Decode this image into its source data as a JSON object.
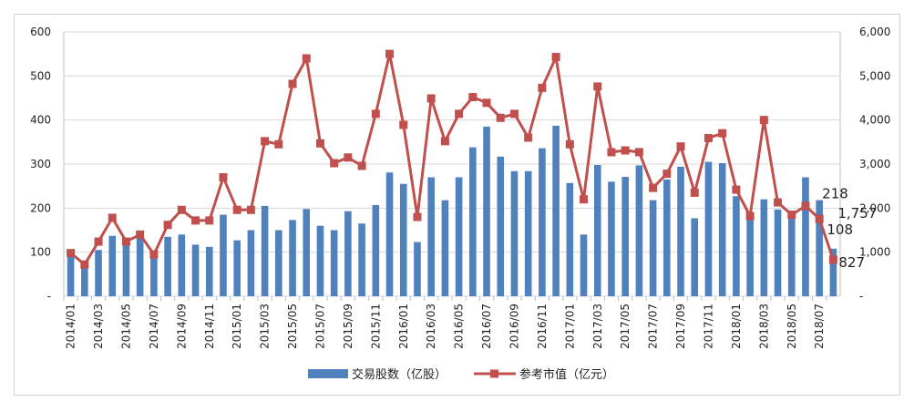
{
  "chart_data": {
    "type": "bar",
    "categories": [
      "2014/01",
      "2014/02",
      "2014/03",
      "2014/04",
      "2014/05",
      "2014/06",
      "2014/07",
      "2014/08",
      "2014/09",
      "2014/10",
      "2014/11",
      "2014/12",
      "2015/01",
      "2015/02",
      "2015/03",
      "2015/04",
      "2015/05",
      "2015/06",
      "2015/07",
      "2015/08",
      "2015/09",
      "2015/10",
      "2015/11",
      "2015/12",
      "2016/01",
      "2016/02",
      "2016/03",
      "2016/04",
      "2016/05",
      "2016/06",
      "2016/07",
      "2016/08",
      "2016/09",
      "2016/10",
      "2016/11",
      "2016/12",
      "2017/01",
      "2017/02",
      "2017/03",
      "2017/04",
      "2017/05",
      "2017/06",
      "2017/07",
      "2017/08",
      "2017/09",
      "2017/10",
      "2017/11",
      "2017/12",
      "2018/01",
      "2018/02",
      "2018/03",
      "2018/04",
      "2018/05",
      "2018/06",
      "2018/07",
      "2018/08"
    ],
    "x_tick_labels": [
      "2014/01",
      "2014/03",
      "2014/05",
      "2014/07",
      "2014/09",
      "2014/11",
      "2015/01",
      "2015/03",
      "2015/05",
      "2015/07",
      "2015/09",
      "2015/11",
      "2016/01",
      "2016/03",
      "2016/05",
      "2016/07",
      "2016/09",
      "2016/11",
      "2017/01",
      "2017/03",
      "2017/05",
      "2017/07",
      "2017/09",
      "2017/11",
      "2018/01",
      "2018/03",
      "2018/05",
      "2018/07"
    ],
    "y_left": {
      "ylim": [
        0,
        600
      ],
      "ticks": [
        "-",
        "100",
        "200",
        "300",
        "400",
        "500",
        "600"
      ]
    },
    "y_right": {
      "ylim": [
        0,
        6000
      ],
      "ticks": [
        "-",
        "1,000",
        "2,000",
        "3,000",
        "4,000",
        "5,000",
        "6,000"
      ]
    },
    "grid": true,
    "legend_position": "bottom",
    "series": [
      {
        "name": "交易股数（亿股）",
        "type": "bar",
        "axis": "left",
        "color": "#4f81bd",
        "values": [
          95,
          65,
          105,
          137,
          125,
          135,
          90,
          135,
          140,
          117,
          112,
          185,
          127,
          150,
          205,
          150,
          173,
          198,
          160,
          150,
          193,
          165,
          207,
          281,
          255,
          123,
          270,
          218,
          270,
          338,
          385,
          317,
          284,
          284,
          336,
          387,
          257,
          140,
          298,
          260,
          271,
          297,
          218,
          265,
          294,
          177,
          305,
          302,
          227,
          180,
          220,
          197,
          180,
          270,
          218,
          108
        ]
      },
      {
        "name": "参考市值（亿元）",
        "type": "line",
        "axis": "right",
        "color": "#c0504d",
        "marker": "square",
        "values": [
          980,
          720,
          1240,
          1780,
          1240,
          1400,
          950,
          1620,
          1960,
          1720,
          1720,
          2700,
          1960,
          1960,
          3520,
          3450,
          4820,
          5400,
          3470,
          3020,
          3150,
          2960,
          4140,
          5500,
          3890,
          1800,
          4490,
          3520,
          4140,
          4520,
          4390,
          4050,
          4140,
          3600,
          4730,
          5430,
          3450,
          2200,
          4760,
          3270,
          3310,
          3270,
          2460,
          2780,
          3400,
          2350,
          3590,
          3700,
          2420,
          1820,
          4000,
          2130,
          1850,
          2050,
          1757,
          827
        ]
      }
    ],
    "annotations": [
      "218",
      "1,757",
      "108",
      "827"
    ]
  },
  "legend": {
    "bar_label": "交易股数（亿股）",
    "line_label": "参考市值（亿元）"
  }
}
